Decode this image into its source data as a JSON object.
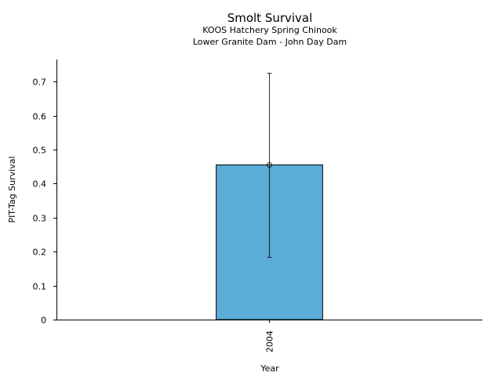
{
  "chart_data": {
    "type": "bar",
    "title": "Smolt Survival",
    "subtitle_lines": [
      "KOOS Hatchery Spring Chinook",
      "Lower Granite Dam - John Day Dam"
    ],
    "xlabel": "Year",
    "ylabel": "PIT-Tag Survival",
    "categories": [
      "2004"
    ],
    "values": [
      0.455
    ],
    "error_low": [
      0.183
    ],
    "error_high": [
      0.725
    ],
    "ylim": [
      0,
      0.765
    ],
    "yticks": [
      0,
      0.1,
      0.2,
      0.3,
      0.4,
      0.5,
      0.6,
      0.7
    ],
    "ytick_labels": [
      "0",
      "0.1",
      "0.2",
      "0.3",
      "0.4",
      "0.5",
      "0.6",
      "0.7"
    ],
    "bar_color": "#5bacd6",
    "grid": false,
    "legend": "none"
  }
}
